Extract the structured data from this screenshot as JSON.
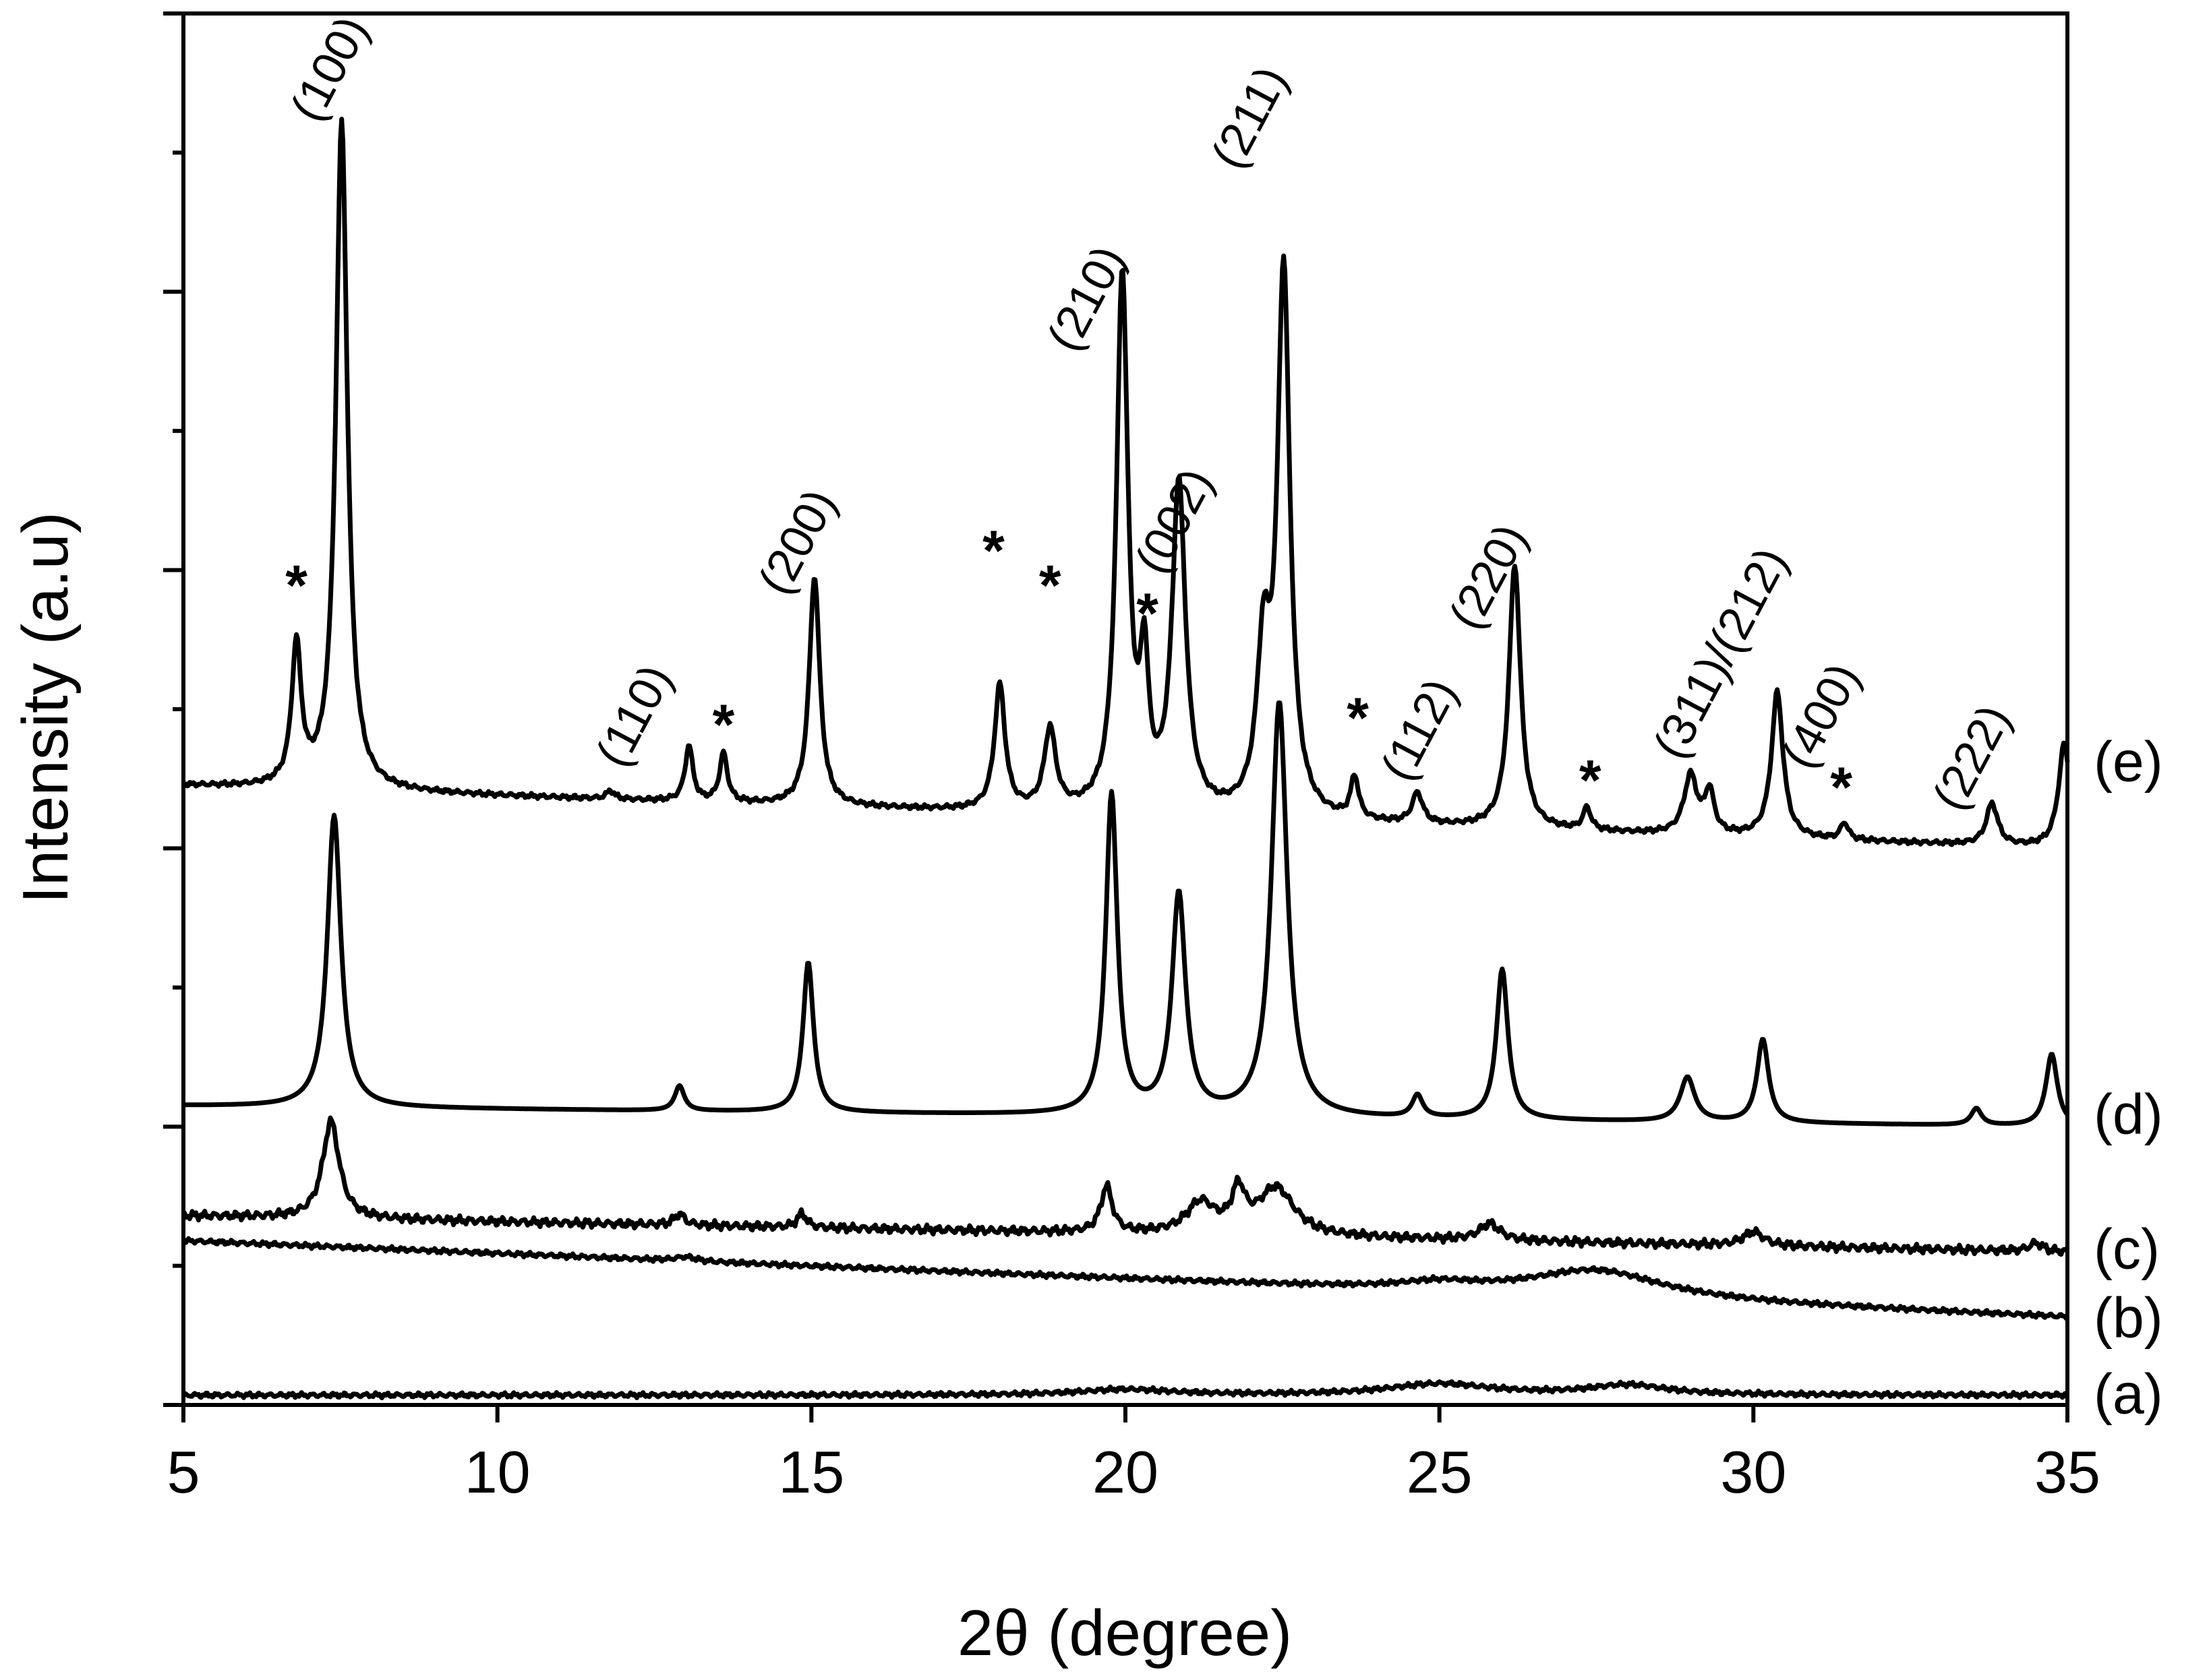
{
  "chart_data": {
    "type": "line",
    "xlabel": "2θ (degree)",
    "ylabel": "Intensity (a.u)",
    "xlim": [
      5,
      35
    ],
    "x_ticks": [
      5,
      10,
      15,
      20,
      25,
      30,
      35
    ],
    "x_tick_labels": [
      "5",
      "10",
      "15",
      "20",
      "25",
      "30",
      "35"
    ],
    "ylim": [
      0,
      10
    ],
    "y_tick_labels_shown": false,
    "y_major_ticks": [
      0,
      2,
      4,
      6,
      8,
      10
    ],
    "y_minor_ticks": [
      1,
      3,
      5,
      7,
      9
    ],
    "grid": false,
    "legend": "none",
    "series": [
      {
        "name": "(a)",
        "baseline_start": 0.07,
        "baseline_end": 0.07,
        "peaks": [
          [
            20,
            0.04,
            1.8
          ],
          [
            25,
            0.08,
            2.0
          ],
          [
            28,
            0.07,
            1.5
          ]
        ],
        "noise": 0.02
      },
      {
        "name": "(b)",
        "baseline_start": 1.18,
        "baseline_end": 0.63,
        "peaks": [
          [
            13,
            0.03,
            0.4
          ],
          [
            27.5,
            0.2,
            2.6
          ],
          [
            25,
            0.05,
            1.5
          ]
        ],
        "noise": 0.02
      },
      {
        "name": "(c)",
        "baseline_start": 1.36,
        "baseline_end": 1.1,
        "peaks": [
          [
            7.35,
            0.7,
            0.32
          ],
          [
            12.9,
            0.08,
            0.2
          ],
          [
            14.85,
            0.1,
            0.18
          ],
          [
            19.7,
            0.33,
            0.22
          ],
          [
            21.2,
            0.22,
            0.55
          ],
          [
            21.8,
            0.28,
            0.25
          ],
          [
            22.4,
            0.34,
            0.7
          ],
          [
            25.8,
            0.12,
            0.4
          ],
          [
            30.0,
            0.1,
            0.4
          ],
          [
            34.5,
            0.06,
            0.25
          ]
        ],
        "noise": 0.035
      },
      {
        "name": "(d)",
        "baseline_start": 2.15,
        "baseline_end": 2.0,
        "peaks": [
          [
            7.4,
            2.1,
            0.26
          ],
          [
            12.9,
            0.18,
            0.18
          ],
          [
            14.95,
            1.08,
            0.2
          ],
          [
            19.78,
            2.3,
            0.22
          ],
          [
            20.85,
            1.58,
            0.26
          ],
          [
            22.45,
            2.98,
            0.3
          ],
          [
            24.65,
            0.16,
            0.2
          ],
          [
            26.0,
            1.08,
            0.22
          ],
          [
            28.95,
            0.32,
            0.28
          ],
          [
            30.15,
            0.6,
            0.22
          ],
          [
            33.55,
            0.12,
            0.2
          ],
          [
            34.75,
            0.52,
            0.22
          ]
        ],
        "noise": 0.0
      },
      {
        "name": "(e)",
        "baseline_start": 4.45,
        "baseline_end": 4.0,
        "peaks": [
          [
            6.8,
            1.0,
            0.18
          ],
          [
            7.52,
            4.8,
            0.22
          ],
          [
            11.8,
            0.06,
            0.15
          ],
          [
            13.05,
            0.4,
            0.15
          ],
          [
            13.6,
            0.35,
            0.15
          ],
          [
            15.05,
            1.65,
            0.2
          ],
          [
            18.0,
            0.9,
            0.2
          ],
          [
            18.8,
            0.58,
            0.22
          ],
          [
            19.95,
            3.85,
            0.22
          ],
          [
            20.3,
            0.95,
            0.16
          ],
          [
            20.85,
            2.35,
            0.26
          ],
          [
            22.2,
            1.1,
            0.25
          ],
          [
            22.52,
            3.9,
            0.24
          ],
          [
            23.65,
            0.3,
            0.15
          ],
          [
            24.65,
            0.22,
            0.2
          ],
          [
            26.2,
            1.9,
            0.22
          ],
          [
            27.35,
            0.16,
            0.15
          ],
          [
            29.0,
            0.42,
            0.25
          ],
          [
            29.3,
            0.3,
            0.18
          ],
          [
            30.38,
            1.05,
            0.22
          ],
          [
            31.45,
            0.12,
            0.15
          ],
          [
            33.8,
            0.3,
            0.22
          ],
          [
            34.95,
            0.75,
            0.22
          ]
        ],
        "noise": 0.02
      }
    ],
    "peak_labels": [
      {
        "text": "(100)",
        "x": 7.55,
        "y": 9.55
      },
      {
        "text": "(110)",
        "x": 12.4,
        "y": 4.9
      },
      {
        "text": "(200)",
        "x": 15.0,
        "y": 6.15
      },
      {
        "text": "(210)",
        "x": 19.6,
        "y": 7.9
      },
      {
        "text": "(002)",
        "x": 21.0,
        "y": 6.3
      },
      {
        "text": "(211)",
        "x": 22.2,
        "y": 9.2
      },
      {
        "text": "(220)",
        "x": 26.0,
        "y": 5.9
      },
      {
        "text": "(112)",
        "x": 24.9,
        "y": 4.8
      },
      {
        "text": "(311)/(212)",
        "x": 29.7,
        "y": 5.35
      },
      {
        "text": "(400)",
        "x": 31.3,
        "y": 4.9
      },
      {
        "text": "(222)",
        "x": 33.7,
        "y": 4.6
      }
    ],
    "star_markers": [
      {
        "text": "*",
        "x": 6.8,
        "y": 5.75
      },
      {
        "text": "*",
        "x": 13.6,
        "y": 4.75
      },
      {
        "text": "*",
        "x": 17.9,
        "y": 6.0
      },
      {
        "text": "*",
        "x": 18.8,
        "y": 5.75
      },
      {
        "text": "*",
        "x": 20.35,
        "y": 5.55
      },
      {
        "text": "*",
        "x": 23.7,
        "y": 4.8
      },
      {
        "text": "*",
        "x": 27.4,
        "y": 4.35
      },
      {
        "text": "*",
        "x": 31.4,
        "y": 4.3
      }
    ]
  }
}
